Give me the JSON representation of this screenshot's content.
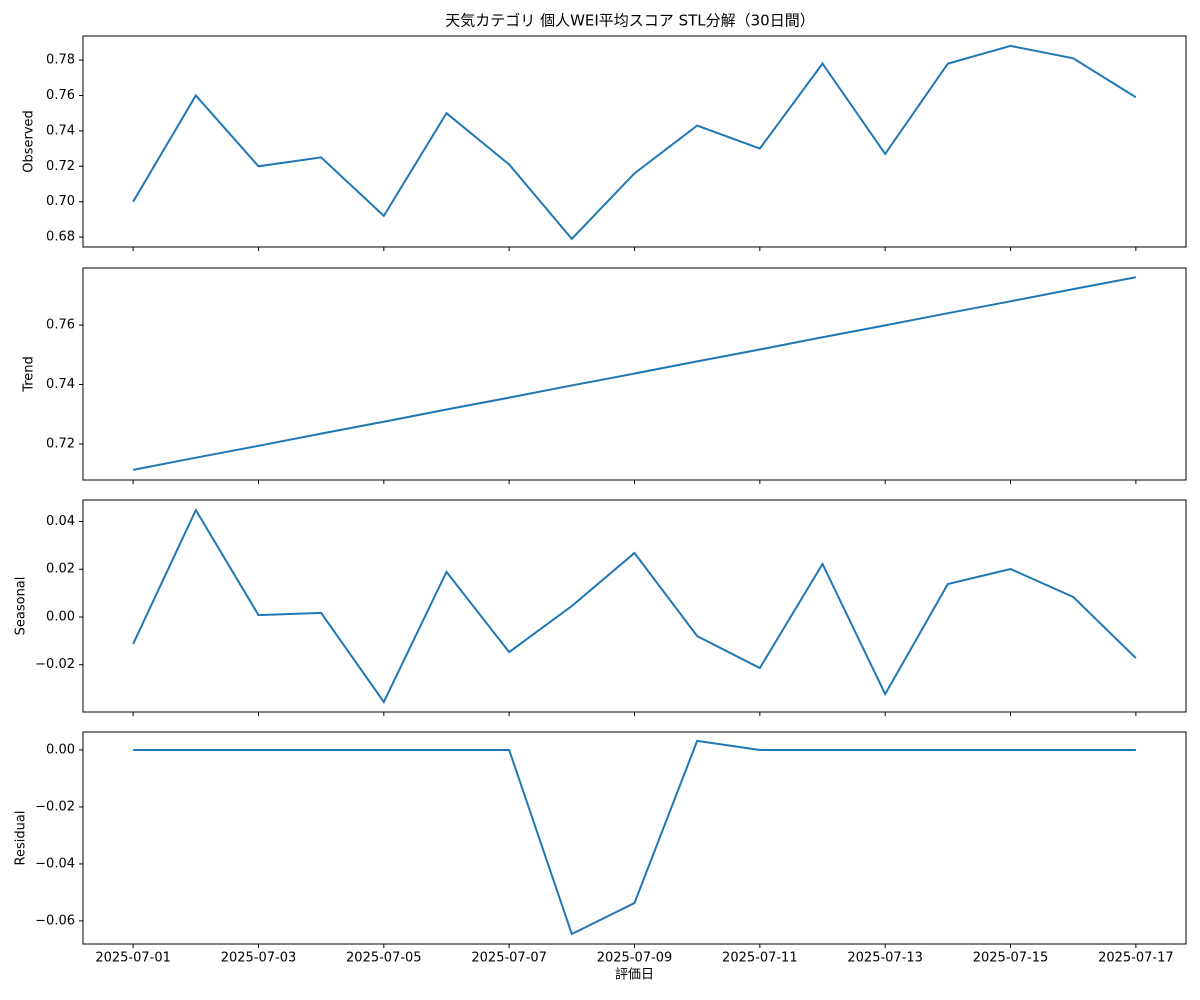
{
  "chart_data": [
    {
      "type": "line",
      "title": "天気カテゴリ 個人WEI平均スコア STL分解（30日間）",
      "y_label": "Observed",
      "color": "#1f77b4",
      "x": [
        "2025-07-01",
        "2025-07-02",
        "2025-07-03",
        "2025-07-04",
        "2025-07-05",
        "2025-07-06",
        "2025-07-07",
        "2025-07-08",
        "2025-07-09",
        "2025-07-10",
        "2025-07-11",
        "2025-07-12",
        "2025-07-13",
        "2025-07-14",
        "2025-07-15",
        "2025-07-16",
        "2025-07-17"
      ],
      "values": [
        0.7,
        0.76,
        0.72,
        0.725,
        0.692,
        0.75,
        0.721,
        0.679,
        0.716,
        0.743,
        0.73,
        0.778,
        0.727,
        0.778,
        0.788,
        0.781,
        0.759
      ],
      "ylim": [
        0.6744,
        0.7936
      ],
      "yticks": [
        {
          "value": 0.68,
          "label": "0.68"
        },
        {
          "value": 0.7,
          "label": "0.70"
        },
        {
          "value": 0.72,
          "label": "0.72"
        },
        {
          "value": 0.74,
          "label": "0.74"
        },
        {
          "value": 0.76,
          "label": "0.76"
        },
        {
          "value": 0.78,
          "label": "0.78"
        }
      ]
    },
    {
      "type": "line",
      "y_label": "Trend",
      "color": "#1f77b4",
      "x": [
        "2025-07-01",
        "2025-07-02",
        "2025-07-03",
        "2025-07-04",
        "2025-07-05",
        "2025-07-06",
        "2025-07-07",
        "2025-07-08",
        "2025-07-09",
        "2025-07-10",
        "2025-07-11",
        "2025-07-12",
        "2025-07-13",
        "2025-07-14",
        "2025-07-15",
        "2025-07-16",
        "2025-07-17"
      ],
      "values": [
        0.7113,
        0.7154,
        0.7194,
        0.7235,
        0.7275,
        0.7316,
        0.7356,
        0.7397,
        0.7437,
        0.7478,
        0.7518,
        0.7559,
        0.7599,
        0.764,
        0.768,
        0.7721,
        0.7761
      ],
      "ylim": [
        0.7079,
        0.7792
      ],
      "yticks": [
        {
          "value": 0.72,
          "label": "0.72"
        },
        {
          "value": 0.74,
          "label": "0.74"
        },
        {
          "value": 0.76,
          "label": "0.76"
        }
      ]
    },
    {
      "type": "line",
      "y_label": "Seasonal",
      "color": "#1f77b4",
      "x": [
        "2025-07-01",
        "2025-07-02",
        "2025-07-03",
        "2025-07-04",
        "2025-07-05",
        "2025-07-06",
        "2025-07-07",
        "2025-07-08",
        "2025-07-09",
        "2025-07-10",
        "2025-07-11",
        "2025-07-12",
        "2025-07-13",
        "2025-07-14",
        "2025-07-15",
        "2025-07-16",
        "2025-07-17"
      ],
      "values": [
        -0.0113,
        0.0448,
        0.0008,
        0.0017,
        -0.0356,
        0.0189,
        -0.0147,
        0.0046,
        0.0268,
        -0.008,
        -0.0214,
        0.0222,
        -0.0323,
        0.0138,
        0.0201,
        0.0084,
        -0.0172
      ],
      "ylim": [
        -0.0398,
        0.049
      ],
      "yticks": [
        {
          "value": -0.02,
          "label": "−0.02"
        },
        {
          "value": 0,
          "label": "0.00"
        },
        {
          "value": 0.02,
          "label": "0.02"
        },
        {
          "value": 0.04,
          "label": "0.04"
        }
      ]
    },
    {
      "type": "line",
      "y_label": "Residual",
      "x_label": "評価日",
      "color": "#1f77b4",
      "x": [
        "2025-07-01",
        "2025-07-02",
        "2025-07-03",
        "2025-07-04",
        "2025-07-05",
        "2025-07-06",
        "2025-07-07",
        "2025-07-08",
        "2025-07-09",
        "2025-07-10",
        "2025-07-11",
        "2025-07-12",
        "2025-07-13",
        "2025-07-14",
        "2025-07-15",
        "2025-07-16",
        "2025-07-17"
      ],
      "values": [
        0,
        0,
        0,
        0,
        0,
        0,
        0,
        -0.0646,
        -0.0537,
        0.0032,
        0,
        0,
        0,
        0,
        0,
        0,
        0
      ],
      "ylim": [
        -0.0681,
        0.0063
      ],
      "yticks": [
        {
          "value": -0.06,
          "label": "−0.06"
        },
        {
          "value": -0.04,
          "label": "−0.04"
        },
        {
          "value": -0.02,
          "label": "−0.02"
        },
        {
          "value": 0,
          "label": "0.00"
        }
      ],
      "xticks": [
        "2025-07-01",
        "2025-07-03",
        "2025-07-05",
        "2025-07-07",
        "2025-07-09",
        "2025-07-11",
        "2025-07-13",
        "2025-07-15",
        "2025-07-17"
      ]
    }
  ]
}
